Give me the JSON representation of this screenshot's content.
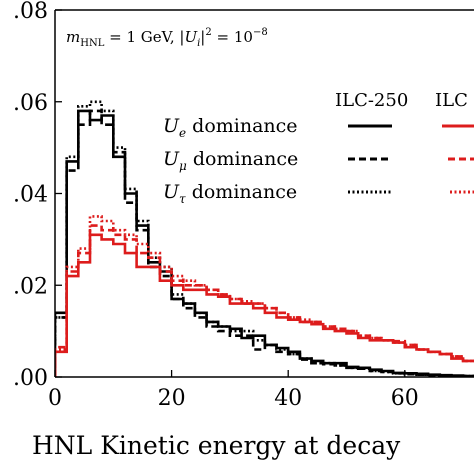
{
  "chart_data": {
    "type": "line",
    "title": "",
    "xlabel": "HNL Kinetic energy at decay",
    "ylabel": "",
    "xlim": [
      0,
      71
    ],
    "ylim": [
      0,
      0.08
    ],
    "x_ticks": [
      0,
      20,
      40,
      60
    ],
    "x_tick_labels": [
      "0",
      "20",
      "40",
      "60"
    ],
    "y_ticks": [
      0,
      0.02,
      0.04,
      0.06,
      0.08
    ],
    "y_tick_labels": [
      ".00",
      ".02",
      ".04",
      ".06",
      ".08"
    ],
    "grid": false,
    "annotation": "m_HNL = 1 GeV,  |U_i|^2 = 10^-8",
    "bin_edges": [
      0,
      2,
      4,
      6,
      8,
      10,
      12,
      14,
      16,
      18,
      20,
      22,
      24,
      26,
      28,
      30,
      32,
      34,
      36,
      38,
      40,
      42,
      44,
      46,
      48,
      50,
      52,
      54,
      56,
      58,
      60,
      62,
      64,
      66,
      68,
      70,
      72
    ],
    "legend": {
      "placement": "top-right",
      "column_headers": [
        "ILC-250",
        "ILC"
      ],
      "rows": [
        "U_e dominance",
        "U_μ dominance",
        "U_τ dominance"
      ]
    },
    "series": [
      {
        "name": "ILC-250 U_e dominance",
        "color": "#000000",
        "dash": "solid",
        "values": [
          0.014,
          0.047,
          0.058,
          0.056,
          0.057,
          0.048,
          0.04,
          0.033,
          0.025,
          0.023,
          0.017,
          0.016,
          0.014,
          0.012,
          0.011,
          0.0105,
          0.0085,
          0.009,
          0.007,
          0.0063,
          0.0055,
          0.004,
          0.0035,
          0.003,
          0.003,
          0.0022,
          0.002,
          0.0016,
          0.0013,
          0.0009,
          0.0008,
          0.0007,
          0.0005,
          0.0004,
          0.0003,
          0.0002
        ]
      },
      {
        "name": "ILC-250 U_μ dominance",
        "color": "#000000",
        "dash": "dashed",
        "values": [
          0.013,
          0.045,
          0.055,
          0.058,
          0.055,
          0.049,
          0.038,
          0.032,
          0.024,
          0.022,
          0.017,
          0.015,
          0.013,
          0.011,
          0.01,
          0.009,
          0.009,
          0.006,
          0.007,
          0.0055,
          0.005,
          0.0038,
          0.003,
          0.0028,
          0.0025,
          0.002,
          0.0018,
          0.0013,
          0.0011,
          0.0008,
          0.0006,
          0.0005,
          0.0004,
          0.0003,
          0.0002,
          0.0002
        ]
      },
      {
        "name": "ILC-250 U_τ dominance",
        "color": "#000000",
        "dash": "dotted",
        "values": [
          0.013,
          0.048,
          0.059,
          0.06,
          0.058,
          0.05,
          0.041,
          0.034,
          0.026,
          0.024,
          0.018,
          0.016,
          0.014,
          0.012,
          0.011,
          0.01,
          0.01,
          0.008,
          0.007,
          0.006,
          0.005,
          0.004,
          0.003,
          0.003,
          0.0025,
          0.002,
          0.0018,
          0.0013,
          0.0011,
          0.0008,
          0.0006,
          0.0005,
          0.0004,
          0.0003,
          0.0002,
          0.0002
        ]
      },
      {
        "name": "ILC U_e dominance",
        "color": "#dd1c1c",
        "dash": "solid",
        "values": [
          0.0055,
          0.022,
          0.025,
          0.031,
          0.03,
          0.029,
          0.027,
          0.024,
          0.024,
          0.021,
          0.02,
          0.019,
          0.019,
          0.018,
          0.0175,
          0.016,
          0.016,
          0.015,
          0.014,
          0.013,
          0.0125,
          0.012,
          0.0115,
          0.0105,
          0.01,
          0.0095,
          0.0085,
          0.008,
          0.008,
          0.0075,
          0.0065,
          0.006,
          0.0055,
          0.005,
          0.004,
          0.0035
        ]
      },
      {
        "name": "ILC U_μ dominance",
        "color": "#dd1c1c",
        "dash": "dashed",
        "values": [
          0.0065,
          0.023,
          0.027,
          0.033,
          0.032,
          0.031,
          0.03,
          0.027,
          0.026,
          0.023,
          0.021,
          0.02,
          0.02,
          0.019,
          0.018,
          0.017,
          0.016,
          0.016,
          0.015,
          0.014,
          0.013,
          0.012,
          0.012,
          0.011,
          0.0105,
          0.01,
          0.009,
          0.0085,
          0.008,
          0.0078,
          0.007,
          0.006,
          0.0055,
          0.005,
          0.0045,
          0.0035
        ]
      },
      {
        "name": "ILC U_τ dominance",
        "color": "#dd1c1c",
        "dash": "dotted",
        "values": [
          0.006,
          0.024,
          0.028,
          0.035,
          0.034,
          0.032,
          0.031,
          0.029,
          0.027,
          0.024,
          0.022,
          0.021,
          0.02,
          0.019,
          0.018,
          0.017,
          0.0165,
          0.016,
          0.015,
          0.014,
          0.013,
          0.0125,
          0.012,
          0.011,
          0.0105,
          0.01,
          0.009,
          0.0085,
          0.008,
          0.0075,
          0.007,
          0.006,
          0.0055,
          0.005,
          0.0045,
          0.0035
        ]
      }
    ]
  }
}
